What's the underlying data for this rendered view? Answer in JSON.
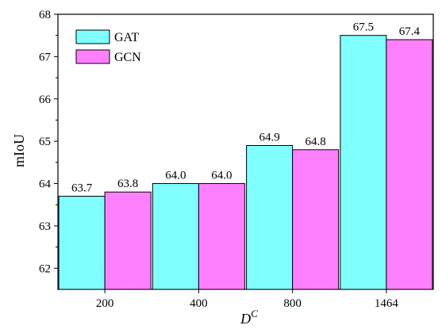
{
  "chart_data": {
    "type": "bar",
    "categories": [
      "200",
      "400",
      "800",
      "1464"
    ],
    "series": [
      {
        "name": "GAT",
        "values": [
          63.7,
          64.0,
          64.9,
          67.5
        ],
        "color": "#80ffff"
      },
      {
        "name": "GCN",
        "values": [
          63.8,
          64.0,
          64.8,
          67.4
        ],
        "color": "#ff80ff"
      }
    ],
    "data_labels": [
      [
        "63.7",
        "64.0",
        "64.9",
        "67.5"
      ],
      [
        "63.8",
        "64.0",
        "64.8",
        "67.4"
      ]
    ],
    "ylabel": "mIoU",
    "xlabel_main": "D",
    "xlabel_sup": "C",
    "ylim": [
      61.5,
      68
    ],
    "yticks": [
      62,
      63,
      64,
      65,
      66,
      67,
      68
    ],
    "ytick_labels": [
      "62",
      "63",
      "64",
      "65",
      "66",
      "67",
      "68"
    ],
    "legend": {
      "position": "top-left",
      "entries": [
        "GAT",
        "GCN"
      ]
    },
    "grid": false
  }
}
